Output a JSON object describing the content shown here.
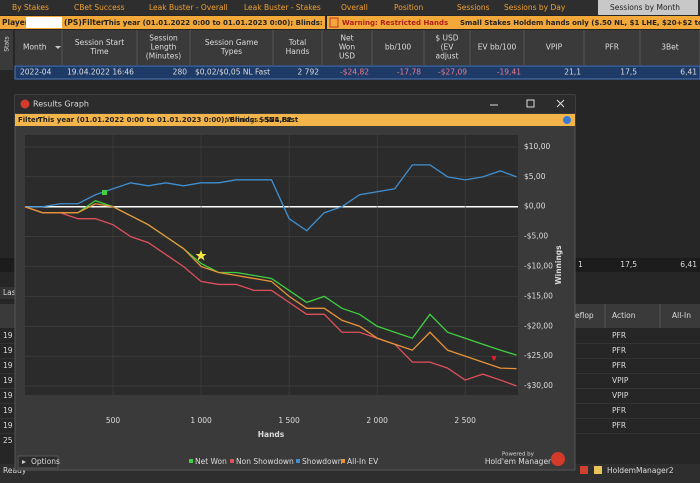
{
  "tabs": [
    "By Stakes",
    "CBet Success",
    "Leak Buster - Overall",
    "Leak Buster - Stakes",
    "Overall",
    "Position",
    "Sessions",
    "Sessions by Day",
    "Sessions by Month"
  ],
  "player_bar": {
    "player_label": "Player:",
    "site": "(PS)",
    "filter_label": "Filter:",
    "filter": "This year (01.01.2022 0:00 to 01.01.2023 0:00); Blinds: $5NL Fast"
  },
  "warning": {
    "label": "Warning: Restricted Hands",
    "text": "Small Stakes Holdem hands only ($.50 NL, $1 LHE, $20+$2 tournaments). No Omaha hand"
  },
  "sidebar": "Stats",
  "table": {
    "columns": [
      [
        "Month"
      ],
      [
        "Session Start",
        "Time"
      ],
      [
        "Session",
        "Length",
        "(Minutes)"
      ],
      [
        "Session Game",
        "Types"
      ],
      [
        "Total",
        "Hands"
      ],
      [
        "Net",
        "Won",
        "USD"
      ],
      [
        "bb/100"
      ],
      [
        "$ USD",
        "(EV",
        "adjust"
      ],
      [
        "EV bb/100"
      ],
      [
        "VPIP"
      ],
      [
        "PFR"
      ],
      [
        "3Bet"
      ]
    ],
    "rows": [
      [
        "2022-04",
        "19.04.2022 16:46",
        "280",
        "$0,02/$0,05 NL Fast",
        "2 792",
        "-$24,82",
        "-17,78",
        "-$27,09",
        "-19,41",
        "21,1",
        "17,5",
        "6,41"
      ]
    ]
  },
  "summary_row": [
    "1",
    "17,5",
    "6,41"
  ],
  "lower_tab": "Las",
  "lower_table": {
    "columns": [
      "eflop",
      "Action",
      "All-In"
    ],
    "actions": [
      "PFR",
      "PFR",
      "PFR",
      "VPIP",
      "VPIP",
      "PFR",
      "PFR"
    ],
    "left_cells": [
      "19",
      "19",
      "19",
      "19",
      "19",
      "19",
      "19",
      "25"
    ]
  },
  "status": "Ready",
  "taskbar_app": "HoldemManager2",
  "graph_window": {
    "title": "Results Graph",
    "filter_label": "Filter:",
    "filter": "This year (01.01.2022 0:00 to 01.01.2023 0:00); Blinds: $5NL Fast",
    "winnings_label": "Winnings:",
    "winnings": "-$24,82",
    "options": "Options",
    "powered_by": "Powered by",
    "brand": "Hold'em Manager"
  },
  "chart_data": {
    "type": "line",
    "x_label": "Hands",
    "y_label": "Winnings",
    "x": [
      0,
      100,
      200,
      300,
      400,
      500,
      600,
      700,
      800,
      900,
      1000,
      1100,
      1200,
      1300,
      1400,
      1500,
      1600,
      1700,
      1800,
      1900,
      2000,
      2100,
      2200,
      2300,
      2400,
      2500,
      2600,
      2700,
      2792
    ],
    "series": [
      {
        "name": "Net Won",
        "color": "#3fd13f",
        "values": [
          0,
          -1,
          -1,
          -1,
          1,
          0,
          -1.5,
          -3,
          -5,
          -7,
          -9.5,
          -11,
          -11,
          -11.5,
          -12,
          -14,
          -16,
          -15,
          -17,
          -18,
          -20,
          -21,
          -22,
          -18,
          -21,
          -22,
          -23,
          -24,
          -24.82
        ]
      },
      {
        "name": "Non Showdown",
        "color": "#e0505a",
        "values": [
          0,
          -1,
          -1,
          -2,
          -2,
          -3,
          -5,
          -6,
          -8,
          -10,
          -12.5,
          -13,
          -13,
          -14,
          -14,
          -16,
          -18,
          -18,
          -21,
          -21,
          -22,
          -23,
          -26,
          -26,
          -27,
          -29,
          -28,
          -29,
          -30
        ]
      },
      {
        "name": "Showdown",
        "color": "#3f8fd0",
        "values": [
          0,
          0,
          0.5,
          0.5,
          2,
          3,
          4,
          3.5,
          4,
          3.5,
          4,
          4,
          4.5,
          4.5,
          4.5,
          -2,
          -4,
          -1,
          0,
          2,
          2.5,
          3,
          7,
          7,
          5,
          4.5,
          5,
          6,
          5
        ]
      },
      {
        "name": "All-In EV",
        "color": "#e8923a",
        "values": [
          0,
          -1,
          -1,
          -1,
          0.5,
          0,
          -1.5,
          -3,
          -5,
          -7,
          -10,
          -11,
          -11.5,
          -12,
          -12.5,
          -15,
          -17,
          -17,
          -19,
          -20,
          -22,
          -23,
          -24,
          -21,
          -24,
          -25,
          -26,
          -27,
          -27.09
        ]
      }
    ],
    "xlim": [
      0,
      2800
    ],
    "ylim": [
      -31.5,
      12
    ],
    "xticks": [
      500,
      {
        "value": 1000,
        "label": "1 000"
      },
      {
        "value": 1500,
        "label": "1 500"
      },
      {
        "value": 2000,
        "label": "2 000"
      },
      {
        "value": 2500,
        "label": "2 500"
      }
    ],
    "yticks": [
      {
        "value": 10,
        "label": "$10,00"
      },
      {
        "value": 5,
        "label": "$5,00"
      },
      {
        "value": 0,
        "label": "$0,00"
      },
      {
        "value": -5,
        "label": "-$5,00"
      },
      {
        "value": -10,
        "label": "-$10,00"
      },
      {
        "value": -15,
        "label": "-$15,00"
      },
      {
        "value": -20,
        "label": "-$20,00"
      },
      {
        "value": -25,
        "label": "-$25,00"
      },
      {
        "value": -30,
        "label": "-$30,00"
      }
    ],
    "grid": true,
    "zero_line_color": "#ffffff"
  }
}
